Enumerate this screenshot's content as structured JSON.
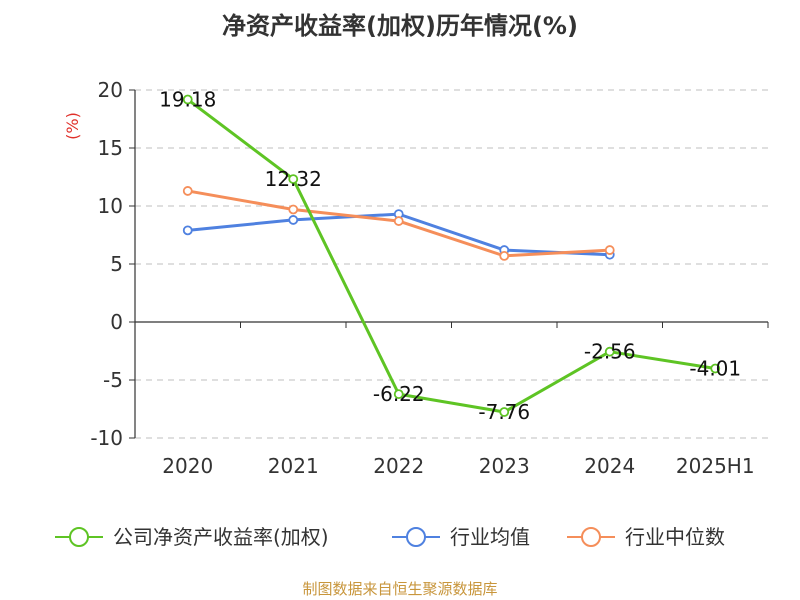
{
  "chart_data": {
    "type": "line",
    "title": "净资产收益率(加权)历年情况(%)",
    "ylabel": "(%)",
    "xlabel": "",
    "categories": [
      "2020",
      "2021",
      "2022",
      "2023",
      "2024",
      "2025H1"
    ],
    "ylim": [
      -10,
      20
    ],
    "yticks": [
      20,
      15,
      10,
      5,
      0,
      -5,
      -10
    ],
    "grid": true,
    "legend_position": "bottom",
    "series": [
      {
        "name": "公司净资产收益率(加权)",
        "color": "#5ec424",
        "values": [
          19.18,
          12.32,
          -6.22,
          -7.76,
          -2.56,
          -4.01
        ],
        "labels": [
          "19.18",
          "12.32",
          "-6.22",
          "-7.76",
          "-2.56",
          "-4.01"
        ]
      },
      {
        "name": "行业均值",
        "color": "#4f81e0",
        "values": [
          7.9,
          8.8,
          9.3,
          6.2,
          5.8,
          null
        ]
      },
      {
        "name": "行业中位数",
        "color": "#f58e5a",
        "values": [
          11.3,
          9.7,
          8.7,
          5.7,
          6.2,
          null
        ]
      }
    ],
    "source": "制图数据来自恒生聚源数据库"
  }
}
